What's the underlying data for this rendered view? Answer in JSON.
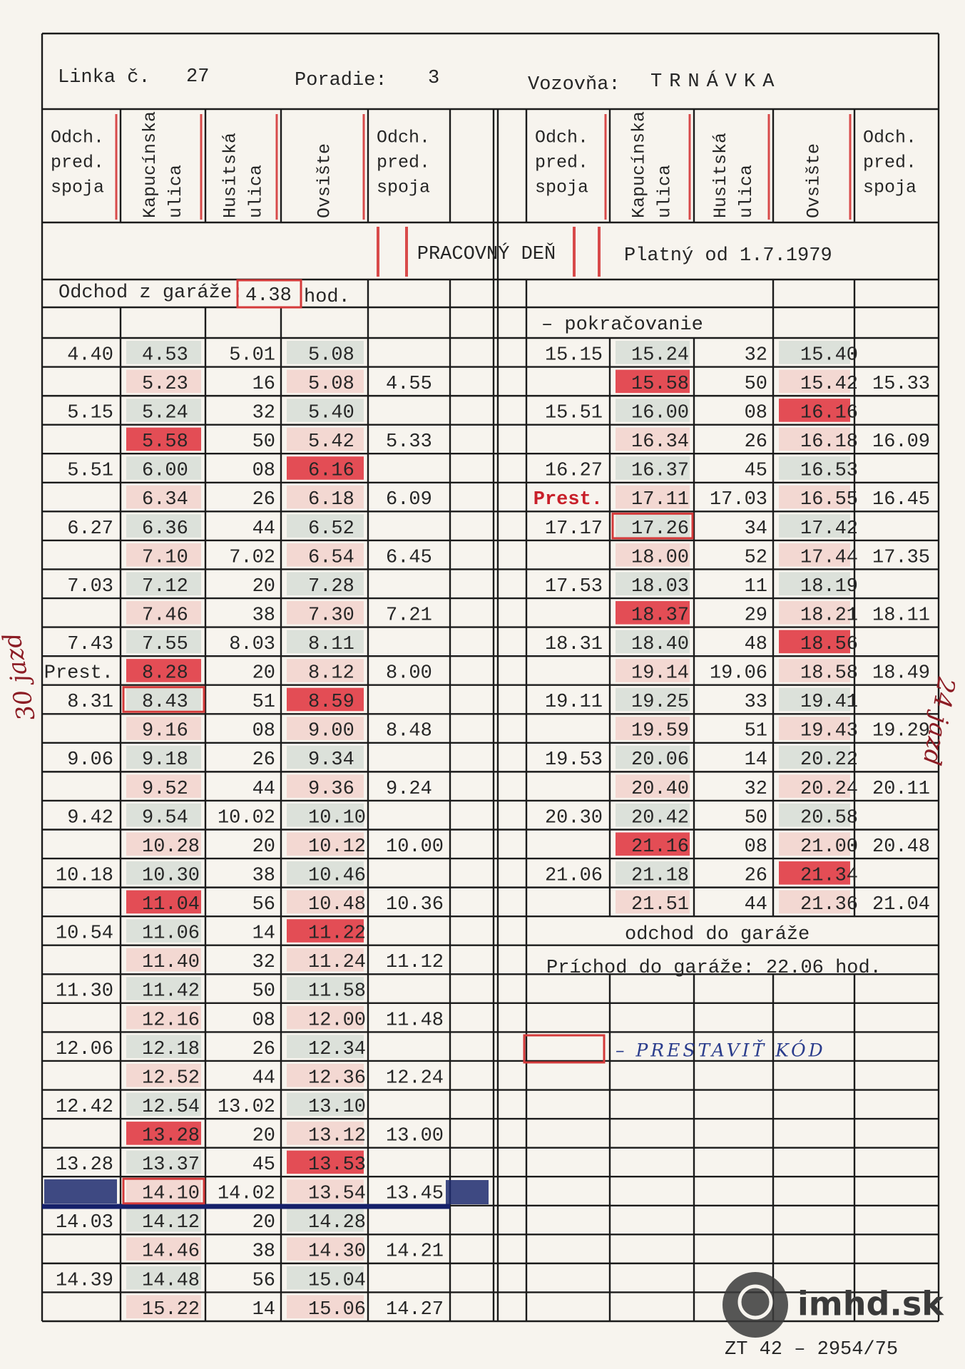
{
  "header": {
    "line_label": "Linka č.",
    "line": "27",
    "order_label": "Poradie:",
    "order": "3",
    "depot_label": "Vozovňa:",
    "depot": "TRNÁVKA"
  },
  "columns": {
    "left": [
      [
        "Odch.",
        "pred.",
        "spoja"
      ],
      [
        "Kapucínska",
        "ulica"
      ],
      [
        "Husitská",
        "ulica"
      ],
      [
        "Ovsište"
      ],
      [
        "Odch.",
        "pred.",
        "spoja"
      ]
    ],
    "right": [
      [
        "Odch.",
        "pred.",
        "spoja"
      ],
      [
        "Kapucínska",
        "ulica"
      ],
      [
        "Husitská",
        "ulica"
      ],
      [
        "Ovsište"
      ],
      [
        "Odch.",
        "pred.",
        "spoja"
      ]
    ]
  },
  "banner": {
    "day": "PRACOVNÝ DEŇ",
    "valid": "Platný od 1.7.1979"
  },
  "garage_departure": {
    "label": "Odchod z garáže:",
    "time": "4.38",
    "unit": "hod."
  },
  "left": {
    "rows": [
      [
        "4.40",
        "4.53",
        "5.01",
        "5.08",
        null
      ],
      [
        null,
        "5.23",
        "16",
        "5.08",
        "4.55"
      ],
      [
        "5.15",
        "5.24",
        "32",
        "5.40",
        null
      ],
      [
        null,
        "5.58",
        "50",
        "5.42",
        "5.33"
      ],
      [
        "5.51",
        "6.00",
        "08",
        "6.16",
        null
      ],
      [
        null,
        "6.34",
        "26",
        "6.18",
        "6.09"
      ],
      [
        "6.27",
        "6.36",
        "44",
        "6.52",
        null
      ],
      [
        null,
        "7.10",
        "7.02",
        "6.54",
        "6.45"
      ],
      [
        "7.03",
        "7.12",
        "20",
        "7.28",
        null
      ],
      [
        null,
        "7.46",
        "38",
        "7.30",
        "7.21"
      ],
      [
        "7.43",
        "7.55",
        "8.03",
        "8.11",
        null
      ],
      [
        "Prest.",
        "8.28",
        "20",
        "8.12",
        "8.00"
      ],
      [
        "8.31",
        "8.43",
        "51",
        "8.59",
        null
      ],
      [
        null,
        "9.16",
        "08",
        "9.00",
        "8.48"
      ],
      [
        "9.06",
        "9.18",
        "26",
        "9.34",
        null
      ],
      [
        null,
        "9.52",
        "44",
        "9.36",
        "9.24"
      ],
      [
        "9.42",
        "9.54",
        "10.02",
        "10.10",
        null
      ],
      [
        null,
        "10.28",
        "20",
        "10.12",
        "10.00"
      ],
      [
        "10.18",
        "10.30",
        "38",
        "10.46",
        null
      ],
      [
        null,
        "11.04",
        "56",
        "10.48",
        "10.36"
      ],
      [
        "10.54",
        "11.06",
        "14",
        "11.22",
        null
      ],
      [
        null,
        "11.40",
        "32",
        "11.24",
        "11.12"
      ],
      [
        "11.30",
        "11.42",
        "50",
        "11.58",
        null
      ],
      [
        null,
        "12.16",
        "08",
        "12.00",
        "11.48"
      ],
      [
        "12.06",
        "12.18",
        "26",
        "12.34",
        null
      ],
      [
        null,
        "12.52",
        "44",
        "12.36",
        "12.24"
      ],
      [
        "12.42",
        "12.54",
        "13.02",
        "13.10",
        null
      ],
      [
        null,
        "13.28",
        "20",
        "13.12",
        "13.00"
      ],
      [
        "13.28",
        "13.37",
        "45",
        "13.53",
        null
      ],
      [
        null,
        "14.10",
        "14.02",
        "13.54",
        "13.45"
      ],
      [
        "14.03",
        "14.12",
        "20",
        "14.28",
        null
      ],
      [
        null,
        "14.46",
        "38",
        "14.30",
        "14.21"
      ],
      [
        "14.39",
        "14.48",
        "56",
        "15.04",
        null
      ],
      [
        null,
        "15.22",
        "14",
        "15.06",
        "14.27"
      ]
    ]
  },
  "right": {
    "continued": "– pokračovanie",
    "rows": [
      [
        "15.15",
        "15.24",
        "32",
        "15.40",
        null
      ],
      [
        null,
        "15.58",
        "50",
        "15.42",
        "15.33"
      ],
      [
        "15.51",
        "16.00",
        "08",
        "16.16",
        null
      ],
      [
        null,
        "16.34",
        "26",
        "16.18",
        "16.09"
      ],
      [
        "16.27",
        "16.37",
        "45",
        "16.53",
        null
      ],
      [
        "Prest.",
        "17.11",
        "17.03",
        "16.55",
        "16.45"
      ],
      [
        "17.17",
        "17.26",
        "34",
        "17.42",
        null
      ],
      [
        null,
        "18.00",
        "52",
        "17.44",
        "17.35"
      ],
      [
        "17.53",
        "18.03",
        "11",
        "18.19",
        null
      ],
      [
        null,
        "18.37",
        "29",
        "18.21",
        "18.11"
      ],
      [
        "18.31",
        "18.40",
        "48",
        "18.56",
        null
      ],
      [
        null,
        "19.14",
        "19.06",
        "18.58",
        "18.49"
      ],
      [
        "19.11",
        "19.25",
        "33",
        "19.41",
        null
      ],
      [
        null,
        "19.59",
        "51",
        "19.43",
        "19.29"
      ],
      [
        "19.53",
        "20.06",
        "14",
        "20.22",
        null
      ],
      [
        null,
        "20.40",
        "32",
        "20.24",
        "20.11"
      ],
      [
        "20.30",
        "20.42",
        "50",
        "20.58",
        null
      ],
      [
        null,
        "21.16",
        "08",
        "21.00",
        "20.48"
      ],
      [
        "21.06",
        "21.18",
        "26",
        "21.34",
        null
      ],
      [
        null,
        "21.51",
        "44",
        "21.36",
        "21.04"
      ]
    ],
    "depot_departure": "odchod do garáže",
    "garage_arrival": "Príchod do garáže: 22.06 hod."
  },
  "legend": "– PRESTAVIŤ KÓD",
  "notes": {
    "left": "30 jazd",
    "right": "24 jazd"
  },
  "footer": "ZT 42 – 2954/75",
  "watermark": "imhd.sk"
}
